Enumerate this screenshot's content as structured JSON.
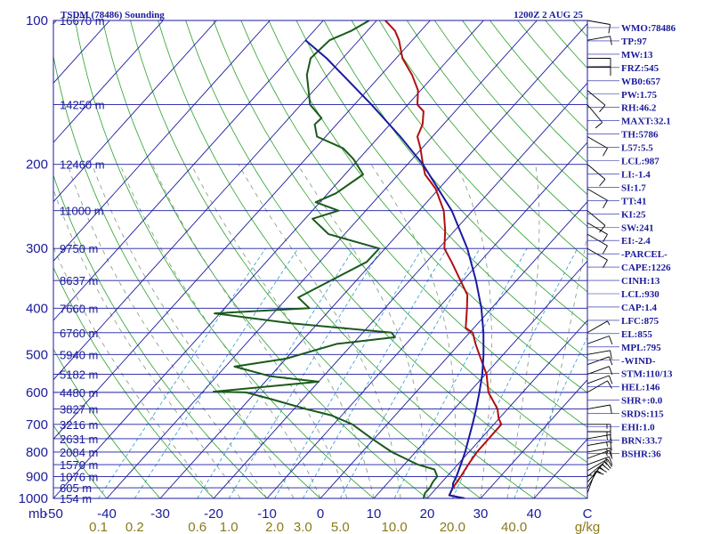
{
  "header": {
    "station": "TSDM (78486) Sounding",
    "time": "1200Z  2 AUG 25"
  },
  "chart_data": {
    "type": "line",
    "subtype": "skew-T log-P thermodynamic diagram",
    "ylabel": "mb",
    "xunits": "C",
    "mixing_units": "g/kg",
    "pressure_axis": {
      "scale": "log",
      "range": [
        1000,
        100
      ],
      "ticks": [
        100,
        200,
        300,
        400,
        500,
        600,
        700,
        800,
        900,
        1000
      ],
      "labels": [
        "100",
        "200",
        "300",
        "400",
        "500",
        "600",
        "700",
        "800",
        "900",
        "1000"
      ]
    },
    "temperature_axis": {
      "range": [
        -50,
        40
      ],
      "ticks": [
        -50,
        -40,
        -30,
        -20,
        -10,
        0,
        10,
        20,
        30,
        40
      ],
      "labels": [
        "-50",
        "-40",
        "-30",
        "-20",
        "-10",
        "0",
        "10",
        "20",
        "30",
        "40"
      ],
      "unit_label": "C"
    },
    "mixing_ratio_labels": [
      "0.1",
      "0.2",
      "0.6",
      "1.0",
      "2.0",
      "3.0",
      "5.0",
      "10.0",
      "20.0",
      "40.0"
    ],
    "unit_label": "g/kg",
    "height_labels": [
      {
        "p": 100,
        "label": "16670 m"
      },
      {
        "p": 150,
        "label": "14250 m"
      },
      {
        "p": 200,
        "label": "12460 m"
      },
      {
        "p": 250,
        "label": "11000 m"
      },
      {
        "p": 300,
        "label": "9750 m"
      },
      {
        "p": 350,
        "label": "8637 m"
      },
      {
        "p": 400,
        "label": "7660 m"
      },
      {
        "p": 450,
        "label": "6760 m"
      },
      {
        "p": 500,
        "label": "5940 m"
      },
      {
        "p": 550,
        "label": "5182 m"
      },
      {
        "p": 600,
        "label": "4480 m"
      },
      {
        "p": 650,
        "label": "3827 m"
      },
      {
        "p": 700,
        "label": "3216 m"
      },
      {
        "p": 750,
        "label": "2631 m"
      },
      {
        "p": 800,
        "label": "2084 m"
      },
      {
        "p": 850,
        "label": "1570 m"
      },
      {
        "p": 900,
        "label": "1076 m"
      },
      {
        "p": 950,
        "label": "605 m"
      },
      {
        "p": 1000,
        "label": "154 m"
      }
    ],
    "series": [
      {
        "key": "temperature",
        "color": "#b01010",
        "points": [
          [
            1000,
            27.0
          ],
          [
            985,
            23.6
          ],
          [
            950,
            23.0
          ],
          [
            925,
            22.8
          ],
          [
            900,
            22.6
          ],
          [
            850,
            22.0
          ],
          [
            800,
            21.5
          ],
          [
            700,
            21.4
          ],
          [
            680,
            19.9
          ],
          [
            650,
            18.1
          ],
          [
            600,
            13.6
          ],
          [
            550,
            10.2
          ],
          [
            500,
            5.5
          ],
          [
            475,
            3.0
          ],
          [
            450,
            0.6
          ],
          [
            440,
            -1.5
          ],
          [
            400,
            -4.6
          ],
          [
            375,
            -6.8
          ],
          [
            350,
            -10.5
          ],
          [
            320,
            -15.3
          ],
          [
            300,
            -18.9
          ],
          [
            275,
            -21.8
          ],
          [
            250,
            -25.4
          ],
          [
            225,
            -30.6
          ],
          [
            210,
            -35.0
          ],
          [
            200,
            -37.1
          ],
          [
            185,
            -40.3
          ],
          [
            175,
            -42.8
          ],
          [
            165,
            -43.9
          ],
          [
            155,
            -45.9
          ],
          [
            150,
            -48.2
          ],
          [
            140,
            -50.5
          ],
          [
            130,
            -54.2
          ],
          [
            120,
            -58.8
          ],
          [
            110,
            -62.5
          ],
          [
            105,
            -64.9
          ],
          [
            100,
            -68.4
          ]
        ]
      },
      {
        "key": "dewpoint",
        "color": "#1a5a1a",
        "points": [
          [
            1000,
            19.3
          ],
          [
            975,
            18.7
          ],
          [
            950,
            18.7
          ],
          [
            925,
            18.3
          ],
          [
            900,
            18.2
          ],
          [
            870,
            16.5
          ],
          [
            850,
            12.6
          ],
          [
            800,
            5.6
          ],
          [
            750,
            -0.4
          ],
          [
            700,
            -6.5
          ],
          [
            670,
            -12.0
          ],
          [
            650,
            -17.8
          ],
          [
            620,
            -25.9
          ],
          [
            600,
            -31.8
          ],
          [
            598,
            -38.0
          ],
          [
            570,
            -20.0
          ],
          [
            555,
            -30.0
          ],
          [
            530,
            -38.3
          ],
          [
            510,
            -30.0
          ],
          [
            475,
            -23.0
          ],
          [
            460,
            -13.2
          ],
          [
            450,
            -14.6
          ],
          [
            430,
            -35.0
          ],
          [
            410,
            -51.0
          ],
          [
            400,
            -34.1
          ],
          [
            380,
            -38.0
          ],
          [
            350,
            -34.8
          ],
          [
            320,
            -31.2
          ],
          [
            300,
            -31.1
          ],
          [
            280,
            -43.0
          ],
          [
            260,
            -48.6
          ],
          [
            250,
            -45.1
          ],
          [
            240,
            -50.8
          ],
          [
            230,
            -48.5
          ],
          [
            210,
            -46.6
          ],
          [
            195,
            -51.0
          ],
          [
            185,
            -54.8
          ],
          [
            175,
            -61.6
          ],
          [
            165,
            -64.1
          ],
          [
            160,
            -63.9
          ],
          [
            150,
            -68.3
          ],
          [
            130,
            -73.9
          ],
          [
            120,
            -76.0
          ],
          [
            110,
            -75.5
          ],
          [
            105,
            -73.0
          ],
          [
            100,
            -71.4
          ]
        ]
      },
      {
        "key": "parcel",
        "color": "#1a1aa0",
        "points": [
          [
            1000,
            27.0
          ],
          [
            985,
            23.6
          ],
          [
            950,
            23.0
          ],
          [
            930,
            22.3
          ],
          [
            900,
            21.8
          ],
          [
            850,
            20.6
          ],
          [
            800,
            19.3
          ],
          [
            700,
            16.0
          ],
          [
            650,
            14.1
          ],
          [
            600,
            11.9
          ],
          [
            550,
            9.4
          ],
          [
            500,
            6.3
          ],
          [
            450,
            2.6
          ],
          [
            400,
            -1.9
          ],
          [
            350,
            -7.6
          ],
          [
            300,
            -14.6
          ],
          [
            250,
            -23.9
          ],
          [
            200,
            -37.1
          ],
          [
            175,
            -46.0
          ],
          [
            150,
            -56.8
          ],
          [
            120,
            -73.0
          ],
          [
            110,
            -80.0
          ]
        ]
      }
    ],
    "wind_barbs": [
      {
        "p": 1000,
        "dir": 180,
        "spd": 5
      },
      {
        "p": 975,
        "dir": 160,
        "spd": 10
      },
      {
        "p": 950,
        "dir": 150,
        "spd": 15
      },
      {
        "p": 925,
        "dir": 140,
        "spd": 15
      },
      {
        "p": 900,
        "dir": 130,
        "spd": 15
      },
      {
        "p": 875,
        "dir": 120,
        "spd": 15
      },
      {
        "p": 850,
        "dir": 110,
        "spd": 15
      },
      {
        "p": 825,
        "dir": 110,
        "spd": 15
      },
      {
        "p": 800,
        "dir": 100,
        "spd": 15
      },
      {
        "p": 775,
        "dir": 100,
        "spd": 15
      },
      {
        "p": 750,
        "dir": 100,
        "spd": 15
      },
      {
        "p": 725,
        "dir": 90,
        "spd": 15
      },
      {
        "p": 700,
        "dir": 90,
        "spd": 15
      },
      {
        "p": 650,
        "dir": 100,
        "spd": 10
      },
      {
        "p": 600,
        "dir": 120,
        "spd": 10
      },
      {
        "p": 575,
        "dir": 110,
        "spd": 10
      },
      {
        "p": 550,
        "dir": 110,
        "spd": 10
      },
      {
        "p": 525,
        "dir": 110,
        "spd": 10
      },
      {
        "p": 500,
        "dir": 100,
        "spd": 10
      },
      {
        "p": 475,
        "dir": 110,
        "spd": 10
      },
      {
        "p": 450,
        "dir": 120,
        "spd": 5
      },
      {
        "p": 300,
        "dir": 60,
        "spd": 10
      },
      {
        "p": 280,
        "dir": 60,
        "spd": 10
      },
      {
        "p": 265,
        "dir": 60,
        "spd": 10
      },
      {
        "p": 250,
        "dir": 50,
        "spd": 10
      },
      {
        "p": 225,
        "dir": 60,
        "spd": 10
      },
      {
        "p": 200,
        "dir": 50,
        "spd": 10
      },
      {
        "p": 175,
        "dir": 60,
        "spd": 10
      },
      {
        "p": 150,
        "dir": 40,
        "spd": 10
      },
      {
        "p": 140,
        "dir": 50,
        "spd": 10
      },
      {
        "p": 125,
        "dir": 90,
        "spd": 10
      },
      {
        "p": 120,
        "dir": 90,
        "spd": 10
      },
      {
        "p": 110,
        "dir": 100,
        "spd": 10
      },
      {
        "p": 100,
        "dir": 80,
        "spd": 10
      }
    ]
  },
  "indices": [
    "WMO:78486",
    "TP:97",
    "MW:13",
    "FRZ:545",
    "WB0:657",
    "PW:1.75",
    "RH:46.2",
    "MAXT:32.1",
    "TH:5786",
    "L57:5.5",
    "LCL:987",
    "LI:-1.4",
    "SI:1.7",
    "TT:41",
    "KI:25",
    "SW:241",
    "EI:-2.4",
    "-PARCEL-",
    "CAPE:1226",
    "CINH:13",
    "LCL:930",
    "CAP:1.4",
    "LFC:875",
    "EL:855",
    "MPL:795",
    "-WIND-",
    "STM:110/13",
    "HEL:146",
    "SHR+:0.0",
    "SRDS:115",
    "EHI:1.0",
    "BRN:33.7",
    "BSHR:36"
  ],
  "colors": {
    "isobar": "#1a1aa0",
    "isotherm": "#1a1aa0",
    "dry_adiabat": "#2aa02a",
    "moist_adiabat": "#7a9a7a",
    "mixing_ratio": "#2a9ad0",
    "frame": "#1a1aa0"
  }
}
